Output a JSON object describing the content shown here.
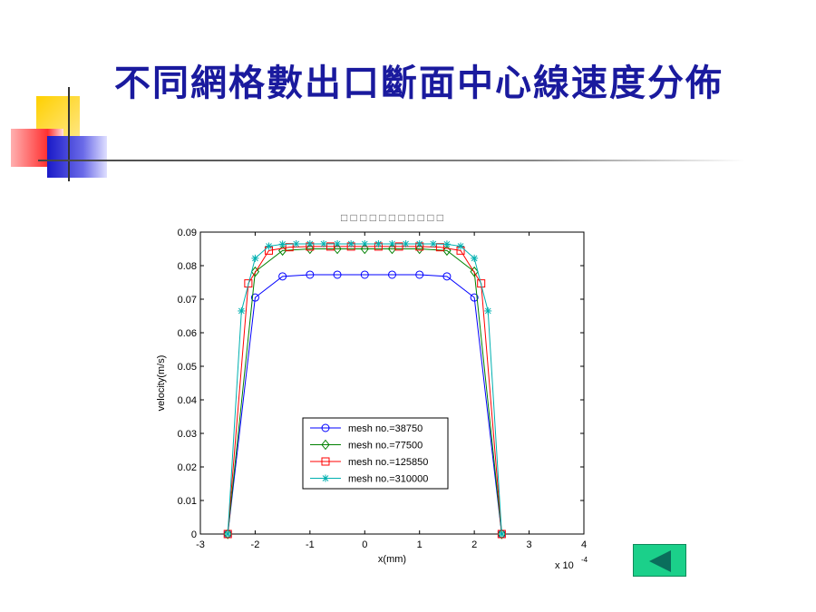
{
  "slide": {
    "title": "不同網格數出口斷面中心線速度分佈",
    "accent_colors": {
      "yellow": "#ffd21a",
      "red": "#ff4444",
      "blue": "#2e2ed0",
      "title": "#1a1a9e"
    },
    "back_button_icon": "left-triangle-icon",
    "back_button_color": "#1bd08a"
  },
  "chart_data": {
    "type": "line",
    "title": "□ □ □ □ □ □ □ □ □ □ □",
    "xlabel": "x(mm)",
    "ylabel": "velocity(m/s)",
    "x_multiplier": "x 10",
    "x_multiplier_exp": "-4",
    "xlim": [
      -3,
      4
    ],
    "ylim": [
      0,
      0.09
    ],
    "xticks": [
      -3,
      -2,
      -1,
      0,
      1,
      2,
      3,
      4
    ],
    "xtick_labels": [
      "-3",
      "-2",
      "-1",
      "0",
      "1",
      "2",
      "3",
      "4"
    ],
    "yticks": [
      0,
      0.01,
      0.02,
      0.03,
      0.04,
      0.05,
      0.06,
      0.07,
      0.08,
      0.09
    ],
    "ytick_labels": [
      "0",
      "0.01",
      "0.02",
      "0.03",
      "0.04",
      "0.05",
      "0.06",
      "0.07",
      "0.08",
      "0.09"
    ],
    "grid": false,
    "legend_position": "center",
    "series": [
      {
        "name": "mesh no.=38750",
        "color": "#0000ff",
        "marker": "circle",
        "x": [
          -2.5,
          -2.0,
          -1.5,
          -1.0,
          -0.5,
          0,
          0.5,
          1.0,
          1.5,
          2.0,
          2.5
        ],
        "y": [
          0,
          0.0705,
          0.0768,
          0.0773,
          0.0773,
          0.0773,
          0.0773,
          0.0773,
          0.0768,
          0.0705,
          0
        ]
      },
      {
        "name": "mesh no.=77500",
        "color": "#008000",
        "marker": "diamond",
        "x": [
          -2.5,
          -2.0,
          -1.5,
          -1.0,
          -0.5,
          0,
          0.5,
          1.0,
          1.5,
          2.0,
          2.5
        ],
        "y": [
          0,
          0.0782,
          0.0845,
          0.085,
          0.085,
          0.085,
          0.085,
          0.085,
          0.0845,
          0.0782,
          0
        ]
      },
      {
        "name": "mesh no.=125850",
        "color": "#ff0000",
        "marker": "square",
        "x": [
          -2.5,
          -2.125,
          -1.75,
          -1.375,
          -1.0,
          -0.625,
          -0.25,
          0.25,
          0.625,
          1.0,
          1.375,
          1.75,
          2.125,
          2.5
        ],
        "y": [
          0,
          0.0747,
          0.0845,
          0.0855,
          0.0857,
          0.0857,
          0.0857,
          0.0857,
          0.0857,
          0.0857,
          0.0855,
          0.0845,
          0.0747,
          0
        ]
      },
      {
        "name": "mesh no.=310000",
        "color": "#00b0b0",
        "marker": "star",
        "x": [
          -2.5,
          -2.25,
          -2.0,
          -1.75,
          -1.5,
          -1.25,
          -1.0,
          -0.75,
          -0.5,
          -0.25,
          0,
          0.25,
          0.5,
          0.75,
          1.0,
          1.25,
          1.5,
          1.75,
          2.0,
          2.25,
          2.5
        ],
        "y": [
          0,
          0.0665,
          0.0822,
          0.0858,
          0.0864,
          0.0865,
          0.0865,
          0.0865,
          0.0865,
          0.0865,
          0.0865,
          0.0865,
          0.0865,
          0.0865,
          0.0865,
          0.0865,
          0.0864,
          0.0858,
          0.0822,
          0.0665,
          0
        ]
      }
    ]
  }
}
